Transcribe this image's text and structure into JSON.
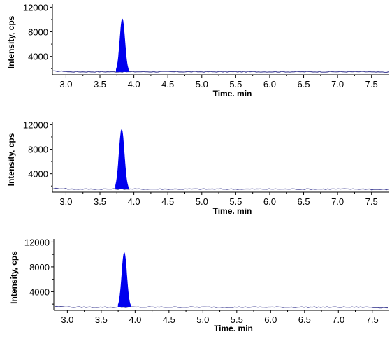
{
  "chart_data": [
    {
      "type": "area",
      "xlabel": "Time. min",
      "ylabel": "Intensity, cps",
      "xlim": [
        2.8,
        7.75
      ],
      "ylim": [
        1000,
        12500
      ],
      "x_ticks": [
        "3.0",
        "3.5",
        "4.0",
        "4.5",
        "5.0",
        "5.5",
        "6.0",
        "6.5",
        "7.0",
        "7.5"
      ],
      "y_ticks": [
        "4000",
        "8000",
        "12000"
      ],
      "baseline": 1500,
      "peak": {
        "x": 3.83,
        "y": 10100,
        "x_start": 3.74,
        "x_end": 3.93
      },
      "colors": {
        "peak_fill": "#0000ee",
        "trace": "#4a4a9a"
      }
    },
    {
      "type": "area",
      "xlabel": "Time. min",
      "ylabel": "Intensity, cps",
      "xlim": [
        2.8,
        7.75
      ],
      "ylim": [
        1000,
        12500
      ],
      "x_ticks": [
        "3.0",
        "3.5",
        "4.0",
        "4.5",
        "5.0",
        "5.5",
        "6.0",
        "6.5",
        "7.0",
        "7.5"
      ],
      "y_ticks": [
        "4000",
        "8000",
        "12000"
      ],
      "baseline": 1500,
      "peak": {
        "x": 3.82,
        "y": 11200,
        "x_start": 3.73,
        "x_end": 3.93
      },
      "colors": {
        "peak_fill": "#0000ee",
        "trace": "#4a4a9a"
      }
    },
    {
      "type": "area",
      "xlabel": "Time. min",
      "ylabel": "Intensity, cps",
      "xlim": [
        2.8,
        7.75
      ],
      "ylim": [
        1000,
        12500
      ],
      "x_ticks": [
        "3.0",
        "3.5",
        "4.0",
        "4.5",
        "5.0",
        "5.5",
        "6.0",
        "6.5",
        "7.0",
        "7.5"
      ],
      "y_ticks": [
        "4000",
        "8000",
        "12000"
      ],
      "baseline": 1500,
      "peak": {
        "x": 3.84,
        "y": 10300,
        "x_start": 3.75,
        "x_end": 3.94
      },
      "colors": {
        "peak_fill": "#0000ee",
        "trace": "#4a4a9a"
      }
    }
  ]
}
